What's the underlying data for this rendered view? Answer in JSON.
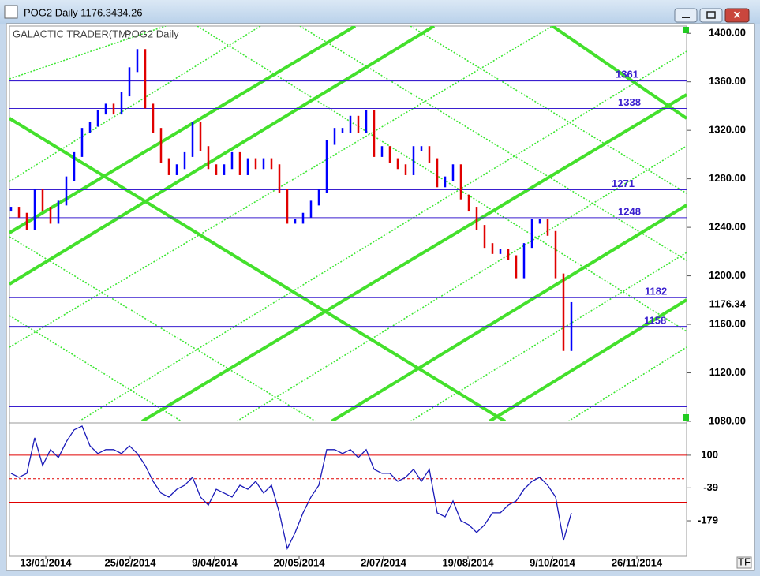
{
  "window": {
    "title": "POG2 Daily 1176.34",
    "change": "34.26",
    "button": "TF"
  },
  "chart_data": {
    "type": "bar",
    "title": "GALACTIC TRADER(TM)",
    "subtitle": "POG2 Daily",
    "last_label": "1176.34",
    "x_labels": [
      "13/01/2014",
      "25/02/2014",
      "9/04/2014",
      "20/05/2014",
      "2/07/2014",
      "19/08/2014",
      "9/10/2014",
      "26/11/2014"
    ],
    "values": [
      1255,
      1250,
      1240,
      1270,
      1255,
      1245,
      1260,
      1280,
      1300,
      1320,
      1325,
      1335,
      1340,
      1335,
      1350,
      1370,
      1385,
      1340,
      1320,
      1295,
      1285,
      1290,
      1300,
      1325,
      1305,
      1290,
      1285,
      1290,
      1300,
      1285,
      1295,
      1290,
      1295,
      1290,
      1270,
      1245,
      1245,
      1250,
      1260,
      1270,
      1310,
      1320,
      1320,
      1330,
      1320,
      1335,
      1300,
      1305,
      1295,
      1290,
      1285,
      1305,
      1305,
      1295,
      1275,
      1280,
      1290,
      1265,
      1255,
      1240,
      1225,
      1220,
      1220,
      1215,
      1200,
      1225,
      1245,
      1245,
      1235,
      1200,
      1140,
      1176.34
    ],
    "up_color": "#0000ff",
    "down_color": "#e00000",
    "ylim": [
      1080,
      1406
    ],
    "yticks": [
      {
        "value": 1080,
        "label": "1080.00"
      },
      {
        "value": 1120,
        "label": "1120.00"
      },
      {
        "value": 1160,
        "label": "1160.00"
      },
      {
        "value": 1200,
        "label": "1200.00"
      },
      {
        "value": 1240,
        "label": "1240.00"
      },
      {
        "value": 1280,
        "label": "1280.00"
      },
      {
        "value": 1320,
        "label": "1320.00"
      },
      {
        "value": 1360,
        "label": "1360.00"
      },
      {
        "value": 1400,
        "label": "1400.00"
      }
    ],
    "levels": [
      1361,
      1338,
      1271,
      1248,
      1182,
      1158
    ],
    "unlabeled_levels": [
      1092
    ],
    "level_color": "#3a1fcf",
    "oscillator": {
      "values": [
        23,
        6,
        23,
        174,
        56,
        124,
        90,
        157,
        208,
        224,
        140,
        107,
        124,
        124,
        107,
        140,
        107,
        56,
        -11,
        -61,
        -78,
        -45,
        -28,
        6,
        -78,
        -112,
        -45,
        -61,
        -78,
        -28,
        -45,
        -11,
        -61,
        -28,
        -145,
        -297,
        -229,
        -145,
        -78,
        -28,
        124,
        124,
        107,
        124,
        90,
        124,
        40,
        23,
        23,
        -11,
        6,
        40,
        -11,
        40,
        -145,
        -162,
        -95,
        -179,
        -196,
        -229,
        -196,
        -145,
        -145,
        -112,
        -95,
        -45,
        -11,
        6,
        -28,
        -78,
        -263,
        -145
      ],
      "color": "#1a1ab8",
      "ylim": [
        -330,
        234
      ],
      "yticks": [
        100,
        -39,
        -179
      ],
      "lines": [
        100,
        0,
        -100
      ],
      "line_color": "#e00000"
    }
  }
}
